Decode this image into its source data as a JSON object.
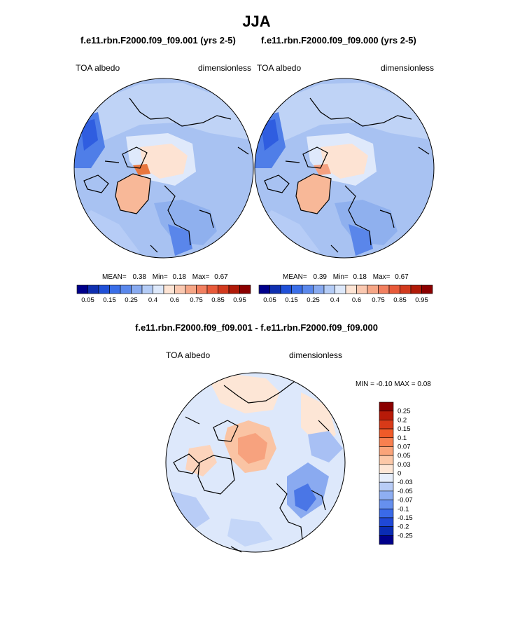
{
  "figure": {
    "season": "JJA",
    "left_panel": {
      "case": "f.e11.rbn.F2000.f09_f09.001 (yrs 2-5)",
      "variable": "TOA albedo",
      "units": "dimensionless",
      "stats": {
        "mean_label": "MEAN=",
        "mean": "0.38",
        "min_label": "Min=",
        "min": "0.18",
        "max_label": "Max=",
        "max": "0.67"
      }
    },
    "right_panel": {
      "case": "f.e11.rbn.F2000.f09_f09.000 (yrs 2-5)",
      "variable": "TOA albedo",
      "units": "dimensionless",
      "stats": {
        "mean_label": "MEAN=",
        "mean": "0.39",
        "min_label": "Min=",
        "min": "0.18",
        "max_label": "Max=",
        "max": "0.67"
      }
    },
    "diff_panel": {
      "title": "f.e11.rbn.F2000.f09_f09.001 - f.e11.rbn.F2000.f09_f09.000",
      "variable": "TOA albedo",
      "units": "dimensionless",
      "minmax_text": "MIN =  -0.10 MAX =   0.08"
    }
  },
  "colorbar_abs": {
    "colors": [
      "#00008b",
      "#1030b0",
      "#2050d8",
      "#3a6ee8",
      "#5a88ec",
      "#88aaf0",
      "#b4ccf6",
      "#dde8fa",
      "#fde4d4",
      "#fac8b0",
      "#f6a686",
      "#f28060",
      "#e85a3a",
      "#d23a1e",
      "#b01a08",
      "#8b0000"
    ],
    "tick_labels": [
      "0.05",
      "0.15",
      "0.25",
      "0.4",
      "0.6",
      "0.75",
      "0.85",
      "0.95"
    ]
  },
  "colorbar_diff": {
    "colors": [
      "#8b0000",
      "#b81a08",
      "#d83a18",
      "#f05a28",
      "#f88050",
      "#faa47a",
      "#fcc8a8",
      "#fde6d6",
      "#e6eefc",
      "#b8ccf6",
      "#8eaef2",
      "#6690ee",
      "#3a6ae8",
      "#1f48d6",
      "#0a2cb4",
      "#00008b"
    ],
    "tick_labels": [
      "0.25",
      "0.2",
      "0.15",
      "0.1",
      "0.07",
      "0.05",
      "0.03",
      "0",
      "-0.03",
      "-0.05",
      "-0.07",
      "-0.1",
      "-0.15",
      "-0.2",
      "-0.25"
    ]
  }
}
